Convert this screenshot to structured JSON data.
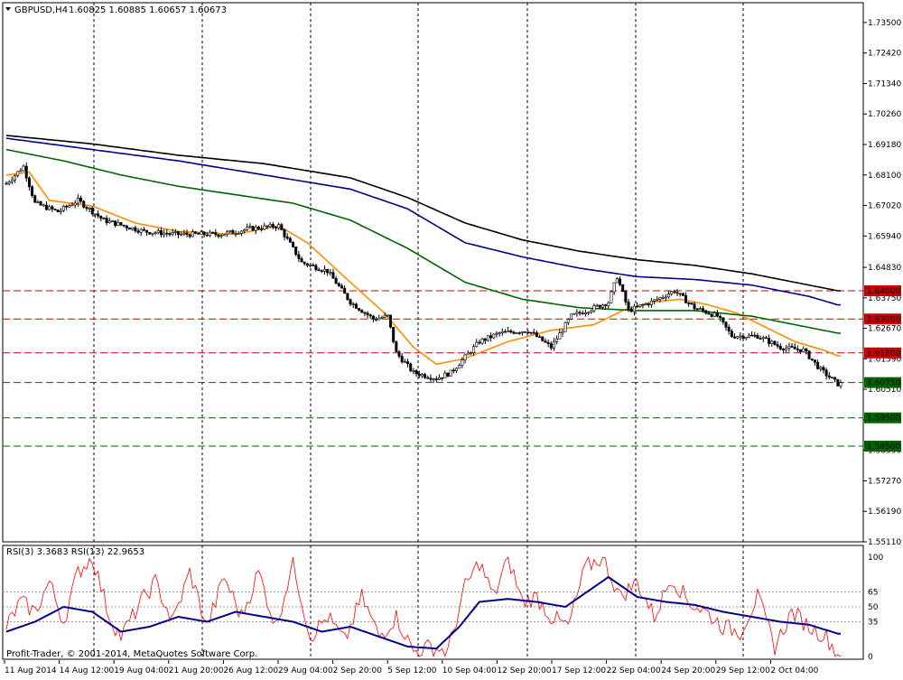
{
  "header": {
    "symbol_tf": "GBPUSD,H4",
    "ohlc": "1.60825 1.60885 1.60657 1.60673"
  },
  "rsi_header": "RSI(3) 3.3683  RSI(13) 22.9653",
  "copyright": "Profit-Trader, © 2001-2014, MetaQuotes Software Corp.",
  "colors": {
    "candle_body": "#000000",
    "ma_fast": "#ff8c00",
    "ma_green": "#006400",
    "ma_navy": "#00008b",
    "ma_black": "#000000",
    "resistance": "#cc0000",
    "support": "#006400",
    "rsi_fast": "#ff0000",
    "rsi_slow": "#00008b"
  },
  "chart_data": {
    "type": "candlestick",
    "price_axis": {
      "ticks": [
        "1.73500",
        "1.72420",
        "1.71340",
        "1.70260",
        "1.69180",
        "1.68100",
        "1.67020",
        "1.65940",
        "1.64830",
        "1.63750",
        "1.62670",
        "1.61590",
        "1.60510",
        "1.59430",
        "1.58350",
        "1.57270",
        "1.56190",
        "1.55110"
      ],
      "range": [
        1.5511,
        1.742
      ]
    },
    "time_axis": {
      "labels": [
        "11 Aug 2014",
        "14 Aug 12:00",
        "19 Aug 04:00",
        "21 Aug 20:00",
        "26 Aug 12:00",
        "29 Aug 04:00",
        "2 Sep 20:00",
        "5 Sep 12:00",
        "10 Sep 04:00",
        "12 Sep 20:00",
        "17 Sep 12:00",
        "22 Sep 04:00",
        "24 Sep 20:00",
        "29 Sep 12:00",
        "2 Oct 04:00"
      ]
    },
    "levels": [
      {
        "label": "1.64000",
        "value": 1.64,
        "kind": "resistance"
      },
      {
        "label": "1.63000",
        "value": 1.63,
        "kind": "resistance"
      },
      {
        "label": "1.61800",
        "value": 1.618,
        "kind": "resistance"
      },
      {
        "label": "1.60750",
        "value": 1.6075,
        "kind": "support"
      },
      {
        "label": "1.59500",
        "value": 1.595,
        "kind": "support"
      },
      {
        "label": "1.58500",
        "value": 1.585,
        "kind": "support"
      }
    ],
    "close_anchors": [
      [
        0,
        1.678
      ],
      [
        6,
        1.684
      ],
      [
        10,
        1.671
      ],
      [
        18,
        1.668
      ],
      [
        25,
        1.672
      ],
      [
        34,
        1.665
      ],
      [
        48,
        1.661
      ],
      [
        60,
        1.66
      ],
      [
        75,
        1.66
      ],
      [
        85,
        1.662
      ],
      [
        95,
        1.663
      ],
      [
        103,
        1.65
      ],
      [
        112,
        1.647
      ],
      [
        120,
        1.636
      ],
      [
        128,
        1.63
      ],
      [
        133,
        1.631
      ],
      [
        136,
        1.618
      ],
      [
        142,
        1.611
      ],
      [
        150,
        1.609
      ],
      [
        155,
        1.611
      ],
      [
        165,
        1.622
      ],
      [
        172,
        1.625
      ],
      [
        182,
        1.626
      ],
      [
        190,
        1.62
      ],
      [
        197,
        1.631
      ],
      [
        205,
        1.634
      ],
      [
        210,
        1.636
      ],
      [
        213,
        1.645
      ],
      [
        217,
        1.633
      ],
      [
        225,
        1.636
      ],
      [
        233,
        1.64
      ],
      [
        240,
        1.634
      ],
      [
        248,
        1.631
      ],
      [
        253,
        1.624
      ],
      [
        262,
        1.624
      ],
      [
        270,
        1.62
      ],
      [
        278,
        1.619
      ],
      [
        284,
        1.612
      ],
      [
        290,
        1.607
      ]
    ],
    "moving_averages": [
      {
        "name": "ma_fast",
        "anchors": [
          [
            0,
            1.681
          ],
          [
            8,
            1.682
          ],
          [
            15,
            1.672
          ],
          [
            30,
            1.67
          ],
          [
            45,
            1.664
          ],
          [
            60,
            1.661
          ],
          [
            80,
            1.66
          ],
          [
            95,
            1.663
          ],
          [
            105,
            1.657
          ],
          [
            120,
            1.643
          ],
          [
            132,
            1.632
          ],
          [
            142,
            1.62
          ],
          [
            150,
            1.614
          ],
          [
            160,
            1.616
          ],
          [
            175,
            1.622
          ],
          [
            190,
            1.626
          ],
          [
            205,
            1.628
          ],
          [
            215,
            1.633
          ],
          [
            225,
            1.636
          ],
          [
            235,
            1.637
          ],
          [
            245,
            1.635
          ],
          [
            255,
            1.632
          ],
          [
            265,
            1.627
          ],
          [
            275,
            1.622
          ],
          [
            285,
            1.619
          ],
          [
            290,
            1.617
          ]
        ]
      },
      {
        "name": "ma_green",
        "anchors": [
          [
            0,
            1.69
          ],
          [
            20,
            1.686
          ],
          [
            40,
            1.681
          ],
          [
            60,
            1.677
          ],
          [
            80,
            1.674
          ],
          [
            100,
            1.671
          ],
          [
            120,
            1.665
          ],
          [
            140,
            1.655
          ],
          [
            160,
            1.643
          ],
          [
            180,
            1.637
          ],
          [
            200,
            1.634
          ],
          [
            220,
            1.633
          ],
          [
            240,
            1.633
          ],
          [
            260,
            1.631
          ],
          [
            280,
            1.627
          ],
          [
            290,
            1.625
          ]
        ]
      },
      {
        "name": "ma_navy",
        "anchors": [
          [
            0,
            1.694
          ],
          [
            30,
            1.69
          ],
          [
            60,
            1.686
          ],
          [
            90,
            1.681
          ],
          [
            120,
            1.676
          ],
          [
            140,
            1.669
          ],
          [
            160,
            1.657
          ],
          [
            180,
            1.652
          ],
          [
            200,
            1.648
          ],
          [
            220,
            1.645
          ],
          [
            240,
            1.644
          ],
          [
            260,
            1.642
          ],
          [
            280,
            1.638
          ],
          [
            290,
            1.635
          ]
        ]
      },
      {
        "name": "ma_black",
        "anchors": [
          [
            0,
            1.695
          ],
          [
            30,
            1.692
          ],
          [
            60,
            1.688
          ],
          [
            90,
            1.685
          ],
          [
            120,
            1.68
          ],
          [
            140,
            1.673
          ],
          [
            160,
            1.664
          ],
          [
            180,
            1.658
          ],
          [
            200,
            1.654
          ],
          [
            220,
            1.651
          ],
          [
            240,
            1.649
          ],
          [
            260,
            1.646
          ],
          [
            280,
            1.642
          ],
          [
            290,
            1.64
          ]
        ]
      }
    ],
    "rsi": {
      "axis_ticks": [
        "100",
        "65",
        "50",
        "35",
        "0"
      ],
      "levels": [
        65,
        50,
        35
      ],
      "series": [
        {
          "name": "RSI(3)",
          "anchors": [
            [
              0,
              30
            ],
            [
              5,
              55
            ],
            [
              10,
              45
            ],
            [
              15,
              75
            ],
            [
              20,
              35
            ],
            [
              25,
              85
            ],
            [
              30,
              100
            ],
            [
              36,
              40
            ],
            [
              40,
              20
            ],
            [
              47,
              55
            ],
            [
              52,
              75
            ],
            [
              58,
              35
            ],
            [
              64,
              85
            ],
            [
              70,
              30
            ],
            [
              76,
              80
            ],
            [
              82,
              40
            ],
            [
              88,
              85
            ],
            [
              94,
              30
            ],
            [
              100,
              95
            ],
            [
              106,
              20
            ],
            [
              112,
              40
            ],
            [
              118,
              15
            ],
            [
              124,
              60
            ],
            [
              130,
              20
            ],
            [
              136,
              40
            ],
            [
              142,
              5
            ],
            [
              148,
              10
            ],
            [
              154,
              5
            ],
            [
              160,
              70
            ],
            [
              165,
              95
            ],
            [
              170,
              60
            ],
            [
              175,
              100
            ],
            [
              180,
              55
            ],
            [
              185,
              60
            ],
            [
              190,
              40
            ],
            [
              196,
              30
            ],
            [
              202,
              90
            ],
            [
              208,
              100
            ],
            [
              214,
              60
            ],
            [
              220,
              75
            ],
            [
              226,
              40
            ],
            [
              232,
              80
            ],
            [
              238,
              55
            ],
            [
              244,
              45
            ],
            [
              250,
              30
            ],
            [
              256,
              25
            ],
            [
              262,
              60
            ],
            [
              268,
              10
            ],
            [
              274,
              45
            ],
            [
              280,
              30
            ],
            [
              286,
              20
            ],
            [
              290,
              2
            ]
          ]
        },
        {
          "name": "RSI(13)",
          "anchors": [
            [
              0,
              25
            ],
            [
              10,
              35
            ],
            [
              20,
              50
            ],
            [
              30,
              45
            ],
            [
              40,
              25
            ],
            [
              50,
              30
            ],
            [
              60,
              40
            ],
            [
              70,
              35
            ],
            [
              80,
              45
            ],
            [
              90,
              40
            ],
            [
              100,
              35
            ],
            [
              110,
              25
            ],
            [
              120,
              30
            ],
            [
              130,
              20
            ],
            [
              140,
              10
            ],
            [
              150,
              8
            ],
            [
              158,
              30
            ],
            [
              165,
              55
            ],
            [
              175,
              58
            ],
            [
              185,
              55
            ],
            [
              195,
              50
            ],
            [
              205,
              70
            ],
            [
              210,
              80
            ],
            [
              220,
              60
            ],
            [
              230,
              55
            ],
            [
              240,
              52
            ],
            [
              250,
              45
            ],
            [
              260,
              40
            ],
            [
              270,
              35
            ],
            [
              280,
              32
            ],
            [
              290,
              23
            ]
          ]
        }
      ]
    }
  }
}
